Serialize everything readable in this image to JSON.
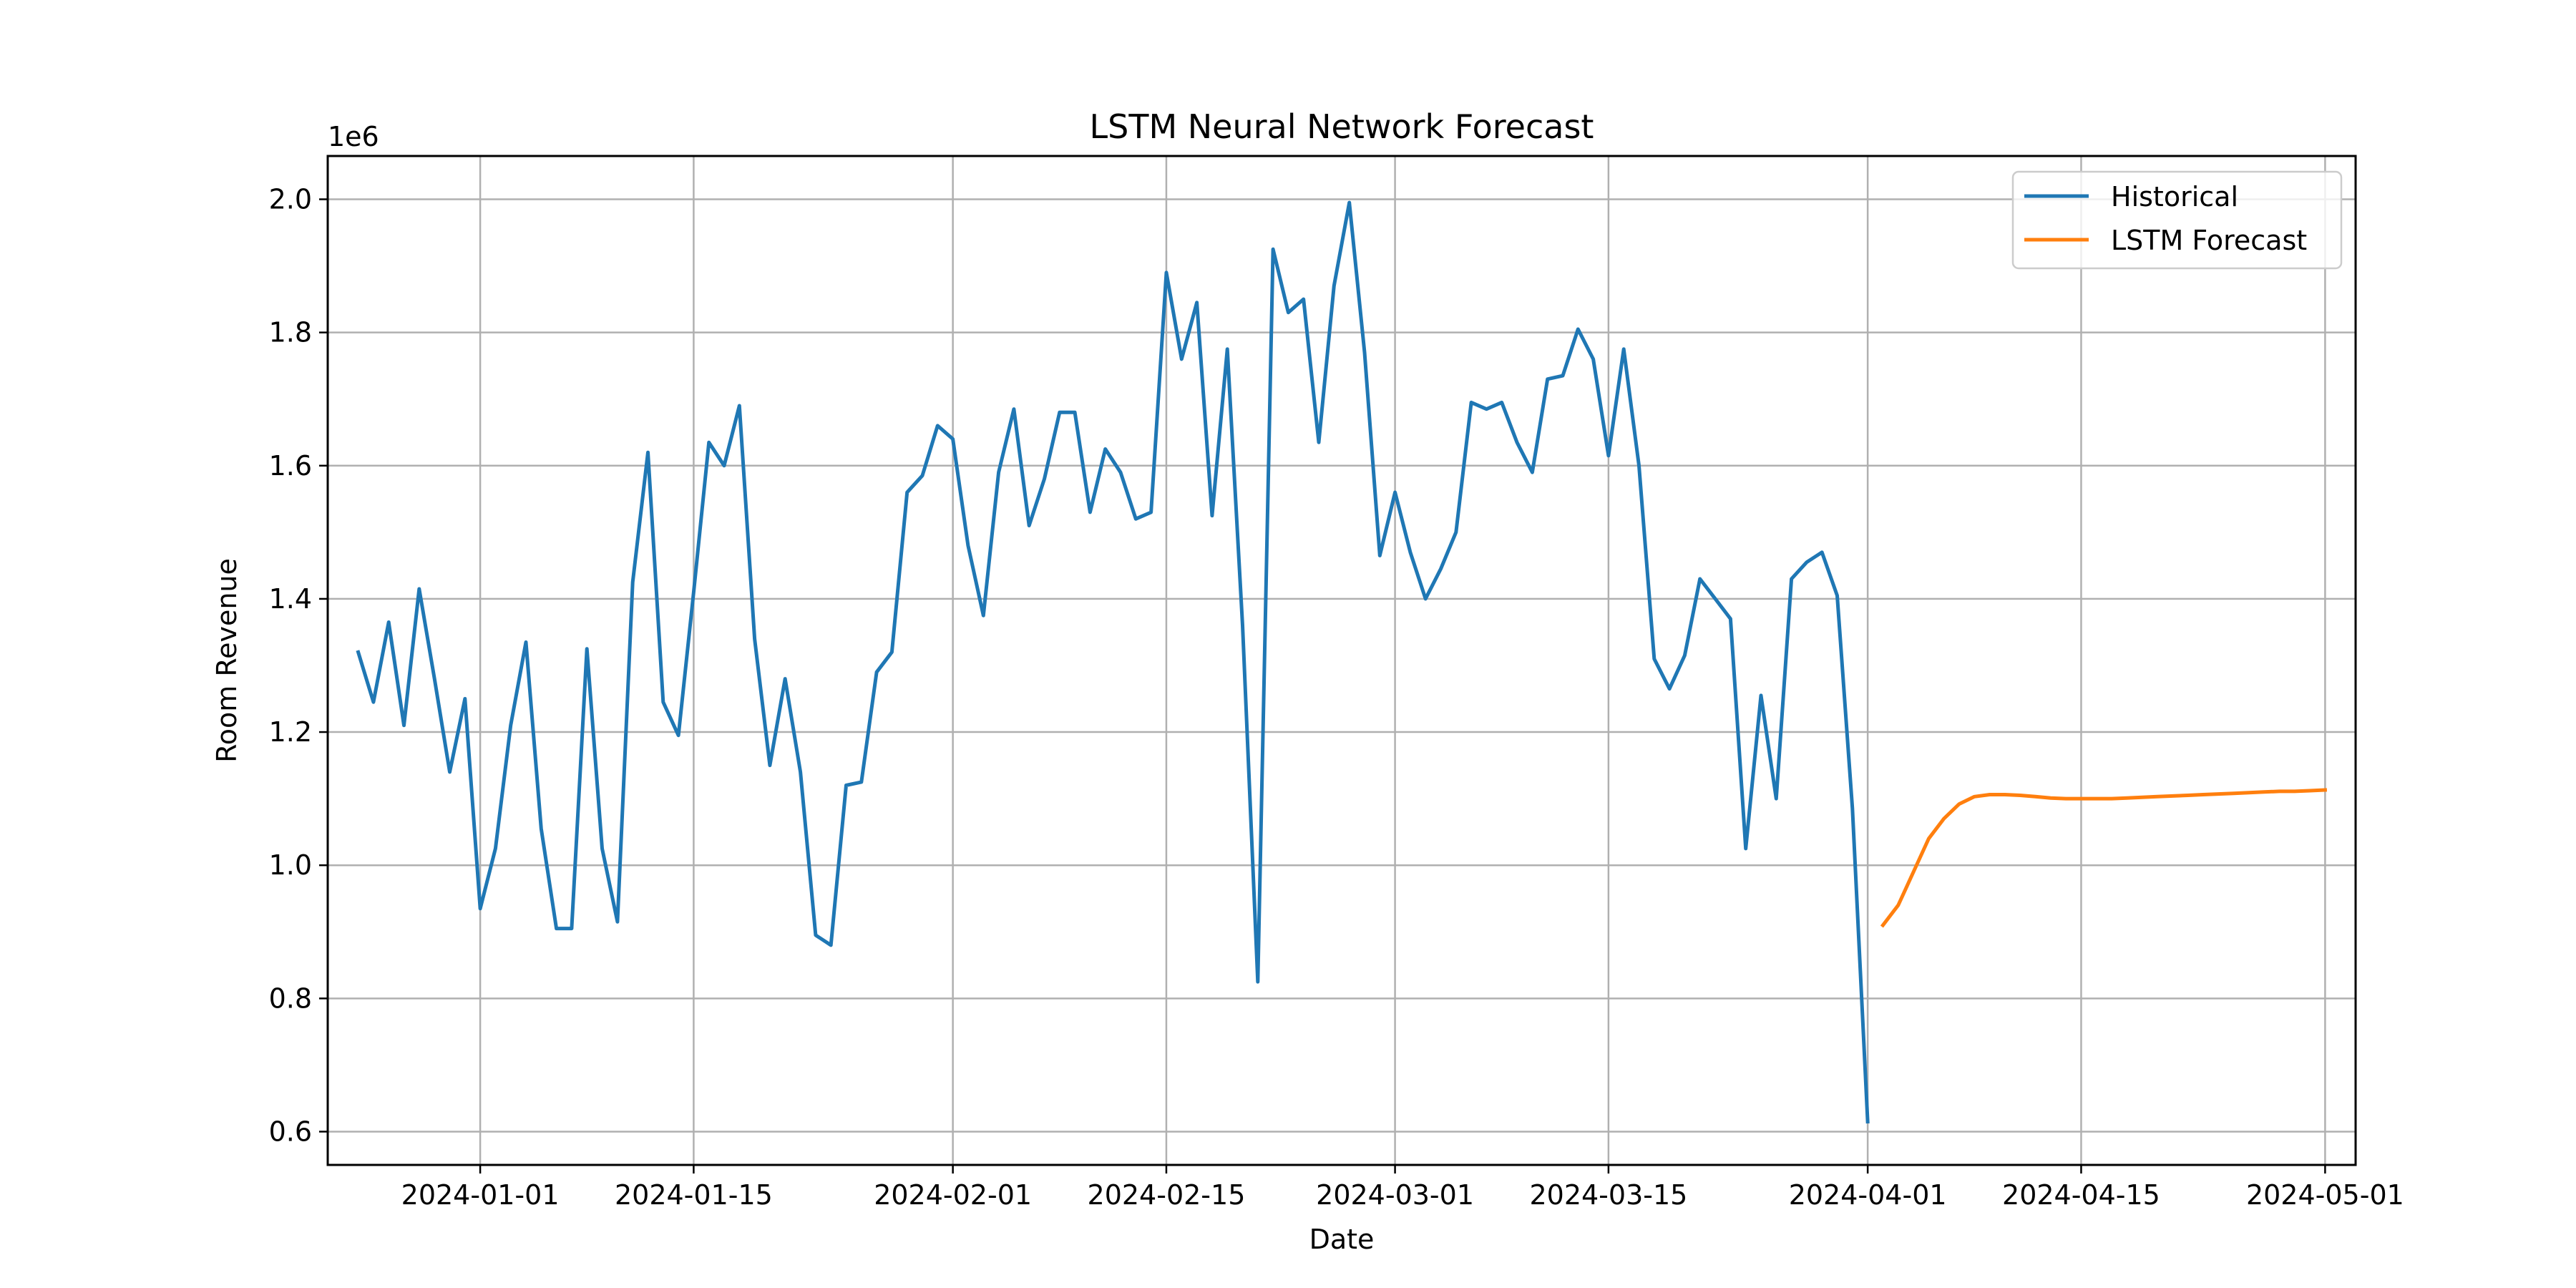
{
  "chart_data": {
    "type": "line",
    "title": "LSTM Neural Network Forecast",
    "xlabel": "Date",
    "ylabel": "Room Revenue",
    "y_offset_label": "1e6",
    "y_scale_factor": 1000000,
    "xlim": [
      "2023-12-22",
      "2024-05-03"
    ],
    "ylim": [
      0.55,
      2.065
    ],
    "x_ticks": [
      "2024-01-01",
      "2024-01-15",
      "2024-02-01",
      "2024-02-15",
      "2024-03-01",
      "2024-03-15",
      "2024-04-01",
      "2024-04-15",
      "2024-05-01"
    ],
    "y_ticks": [
      "0.6",
      "0.8",
      "1.0",
      "1.2",
      "1.4",
      "1.6",
      "1.8",
      "2.0"
    ],
    "grid": true,
    "legend_position": "top-right",
    "series": [
      {
        "name": "Historical",
        "color": "#1f77b4",
        "x": [
          "2023-12-24",
          "2023-12-25",
          "2023-12-26",
          "2023-12-27",
          "2023-12-28",
          "2023-12-29",
          "2023-12-30",
          "2023-12-31",
          "2024-01-01",
          "2024-01-02",
          "2024-01-03",
          "2024-01-04",
          "2024-01-05",
          "2024-01-06",
          "2024-01-07",
          "2024-01-08",
          "2024-01-09",
          "2024-01-10",
          "2024-01-11",
          "2024-01-12",
          "2024-01-13",
          "2024-01-14",
          "2024-01-15",
          "2024-01-16",
          "2024-01-17",
          "2024-01-18",
          "2024-01-19",
          "2024-01-20",
          "2024-01-21",
          "2024-01-22",
          "2024-01-23",
          "2024-01-24",
          "2024-01-25",
          "2024-01-26",
          "2024-01-27",
          "2024-01-28",
          "2024-01-29",
          "2024-01-30",
          "2024-01-31",
          "2024-02-01",
          "2024-02-02",
          "2024-02-03",
          "2024-02-04",
          "2024-02-05",
          "2024-02-06",
          "2024-02-07",
          "2024-02-08",
          "2024-02-09",
          "2024-02-10",
          "2024-02-11",
          "2024-02-12",
          "2024-02-13",
          "2024-02-14",
          "2024-02-15",
          "2024-02-16",
          "2024-02-17",
          "2024-02-18",
          "2024-02-19",
          "2024-02-20",
          "2024-02-21",
          "2024-02-22",
          "2024-02-23",
          "2024-02-24",
          "2024-02-25",
          "2024-02-26",
          "2024-02-27",
          "2024-02-28",
          "2024-02-29",
          "2024-03-01",
          "2024-03-02",
          "2024-03-03",
          "2024-03-04",
          "2024-03-05",
          "2024-03-06",
          "2024-03-07",
          "2024-03-08",
          "2024-03-09",
          "2024-03-10",
          "2024-03-11",
          "2024-03-12",
          "2024-03-13",
          "2024-03-14",
          "2024-03-15",
          "2024-03-16",
          "2024-03-17",
          "2024-03-18",
          "2024-03-19",
          "2024-03-20",
          "2024-03-21",
          "2024-03-22",
          "2024-03-23",
          "2024-03-24",
          "2024-03-25",
          "2024-03-26",
          "2024-03-27",
          "2024-03-28",
          "2024-03-29",
          "2024-03-30",
          "2024-03-31",
          "2024-04-01"
        ],
        "values": [
          1.32,
          1.245,
          1.365,
          1.21,
          1.415,
          1.28,
          1.14,
          1.25,
          0.935,
          1.025,
          1.21,
          1.335,
          1.055,
          0.905,
          0.905,
          1.325,
          1.025,
          0.915,
          1.425,
          1.62,
          1.245,
          1.195,
          1.41,
          1.635,
          1.6,
          1.69,
          1.34,
          1.15,
          1.28,
          1.14,
          0.895,
          0.88,
          1.12,
          1.125,
          1.29,
          1.32,
          1.56,
          1.585,
          1.66,
          1.64,
          1.48,
          1.375,
          1.59,
          1.685,
          1.51,
          1.58,
          1.68,
          1.68,
          1.53,
          1.625,
          1.59,
          1.52,
          1.53,
          1.89,
          1.76,
          1.845,
          1.525,
          1.775,
          1.36,
          0.825,
          1.925,
          1.83,
          1.85,
          1.635,
          1.87,
          1.995,
          1.77,
          1.465,
          1.56,
          1.47,
          1.4,
          1.445,
          1.5,
          1.695,
          1.685,
          1.695,
          1.635,
          1.59,
          1.73,
          1.735,
          1.805,
          1.76,
          1.615,
          1.775,
          1.6,
          1.31,
          1.265,
          1.315,
          1.43,
          1.4,
          1.37,
          1.025,
          1.255,
          1.1,
          1.43,
          1.455,
          1.47,
          1.405,
          1.085,
          0.615
        ]
      },
      {
        "name": "LSTM Forecast",
        "color": "#ff7f0e",
        "x": [
          "2024-04-02",
          "2024-04-03",
          "2024-04-04",
          "2024-04-05",
          "2024-04-06",
          "2024-04-07",
          "2024-04-08",
          "2024-04-09",
          "2024-04-10",
          "2024-04-11",
          "2024-04-12",
          "2024-04-13",
          "2024-04-14",
          "2024-04-15",
          "2024-04-16",
          "2024-04-17",
          "2024-04-18",
          "2024-04-19",
          "2024-04-20",
          "2024-04-21",
          "2024-04-22",
          "2024-04-23",
          "2024-04-24",
          "2024-04-25",
          "2024-04-26",
          "2024-04-27",
          "2024-04-28",
          "2024-04-29",
          "2024-04-30",
          "2024-05-01"
        ],
        "values": [
          0.91,
          0.94,
          0.99,
          1.04,
          1.07,
          1.092,
          1.103,
          1.106,
          1.106,
          1.105,
          1.103,
          1.101,
          1.1,
          1.1,
          1.1,
          1.1,
          1.101,
          1.102,
          1.103,
          1.104,
          1.105,
          1.106,
          1.107,
          1.108,
          1.109,
          1.11,
          1.111,
          1.111,
          1.112,
          1.113
        ]
      }
    ]
  }
}
